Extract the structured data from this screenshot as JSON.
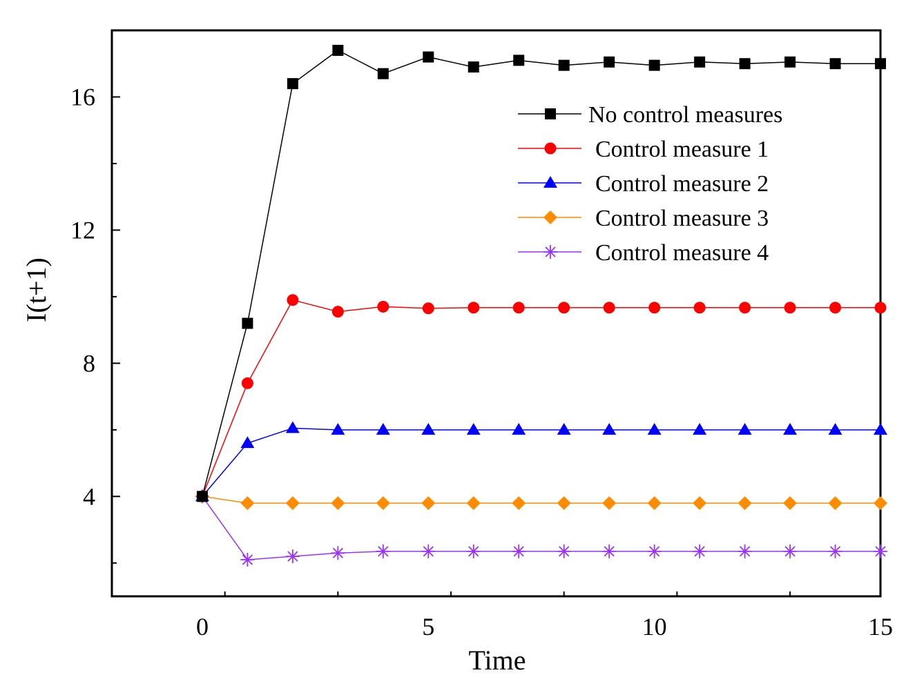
{
  "chart_data": {
    "type": "line",
    "title": "",
    "xlabel": "Time",
    "ylabel": "I(t+1)",
    "xlim": [
      -2,
      15
    ],
    "ylim": [
      1,
      18
    ],
    "x_ticks": [
      0,
      5,
      10,
      15
    ],
    "y_ticks": [
      4,
      8,
      12,
      16
    ],
    "x_tick_labels": [
      "0",
      "5",
      "10",
      "15"
    ],
    "y_tick_labels": [
      "4",
      "8",
      "12",
      "16"
    ],
    "grid": false,
    "legend_position": "top-right",
    "x": [
      0,
      1,
      2,
      3,
      4,
      5,
      6,
      7,
      8,
      9,
      10,
      11,
      12,
      13,
      14,
      15
    ],
    "series": [
      {
        "name": "No control measures",
        "color": "#000000",
        "marker": "square",
        "values": [
          4.0,
          9.2,
          16.4,
          17.4,
          16.7,
          17.2,
          16.9,
          17.1,
          16.95,
          17.05,
          16.95,
          17.05,
          17.0,
          17.05,
          17.0,
          17.0
        ]
      },
      {
        "name": "Control measure 1",
        "color": "#ff0000",
        "marker": "circle",
        "values": [
          4.0,
          7.4,
          9.9,
          9.55,
          9.7,
          9.65,
          9.67,
          9.67,
          9.67,
          9.67,
          9.67,
          9.67,
          9.67,
          9.67,
          9.67,
          9.67
        ]
      },
      {
        "name": "Control measure 2",
        "color": "#0000ff",
        "marker": "triangle",
        "values": [
          4.0,
          5.6,
          6.05,
          6.0,
          6.0,
          6.0,
          6.0,
          6.0,
          6.0,
          6.0,
          6.0,
          6.0,
          6.0,
          6.0,
          6.0,
          6.0
        ]
      },
      {
        "name": "Control measure 3",
        "color": "#ff8c00",
        "marker": "diamond",
        "values": [
          4.0,
          3.8,
          3.8,
          3.8,
          3.8,
          3.8,
          3.8,
          3.8,
          3.8,
          3.8,
          3.8,
          3.8,
          3.8,
          3.8,
          3.8,
          3.8
        ]
      },
      {
        "name": "Control measure 4",
        "color": "#9b30ff",
        "marker": "star",
        "values": [
          4.0,
          2.1,
          2.2,
          2.3,
          2.35,
          2.35,
          2.35,
          2.35,
          2.35,
          2.35,
          2.35,
          2.35,
          2.35,
          2.35,
          2.35,
          2.35
        ]
      }
    ]
  }
}
